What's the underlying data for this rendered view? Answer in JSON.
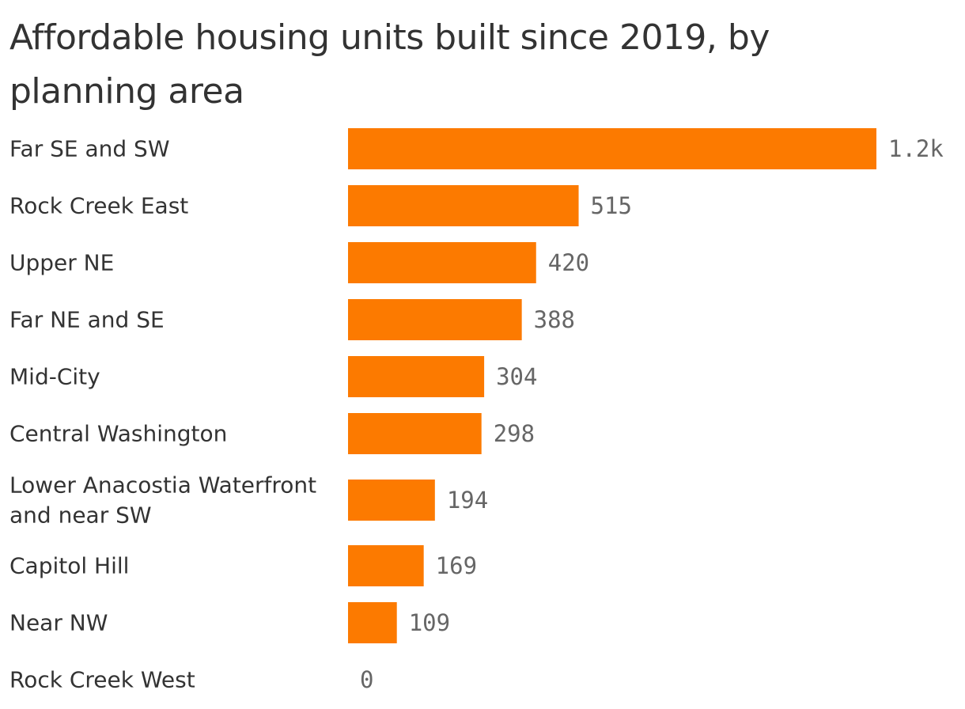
{
  "chart_data": {
    "type": "bar",
    "orientation": "horizontal",
    "title": "Affordable housing units built since 2019, by planning area",
    "categories": [
      "Far SE and SW",
      "Rock Creek East",
      "Upper NE",
      "Far NE and SE",
      "Mid-City",
      "Central Washington",
      "Lower Anacostia Waterfront and near SW",
      "Capitol Hill",
      "Near NW",
      "Rock Creek West"
    ],
    "category_label_lines": [
      [
        "Far SE and SW"
      ],
      [
        "Rock Creek East"
      ],
      [
        "Upper NE"
      ],
      [
        "Far NE and SE"
      ],
      [
        "Mid-City"
      ],
      [
        "Central Washington"
      ],
      [
        "Lower Anacostia Waterfront",
        "and near SW"
      ],
      [
        "Capitol Hill"
      ],
      [
        "Near NW"
      ],
      [
        "Rock Creek West"
      ]
    ],
    "values": [
      1180,
      515,
      420,
      388,
      304,
      298,
      194,
      169,
      109,
      0
    ],
    "value_labels": [
      "1.2k",
      "515",
      "420",
      "388",
      "304",
      "298",
      "194",
      "169",
      "109",
      "0"
    ],
    "xlim": [
      0,
      1180
    ],
    "bar_color": "#fc7a00",
    "grid": false,
    "legend": "none"
  }
}
